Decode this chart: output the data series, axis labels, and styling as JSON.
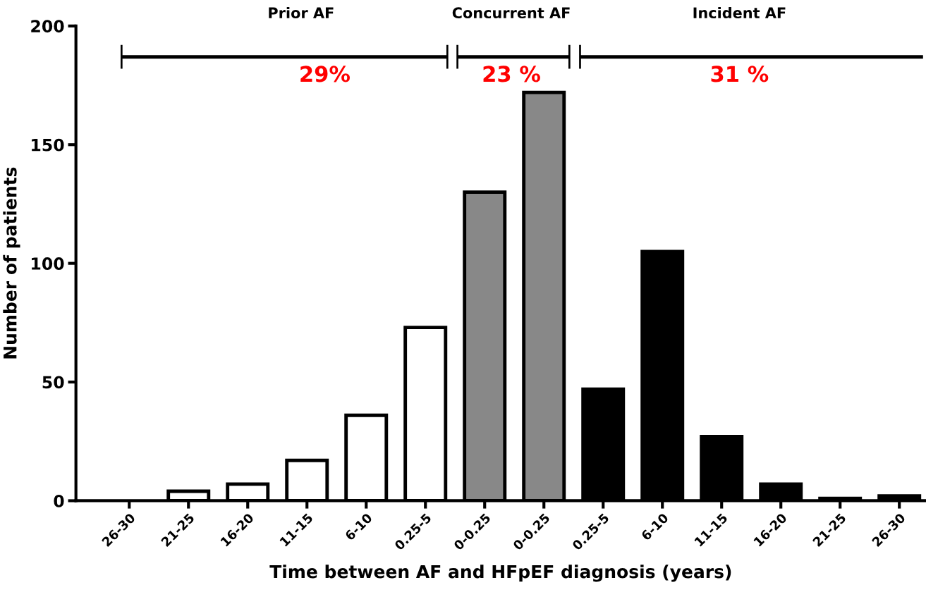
{
  "chart_data": {
    "type": "bar",
    "xlabel": "Time between AF and HFpEF diagnosis (years)",
    "ylabel": "Number of patients",
    "categories": [
      "26-30",
      "21-25",
      "16-20",
      "11-15",
      "6-10",
      "0.25-5",
      "0-0.25",
      "0-0.25",
      "0.25-5",
      "6-10",
      "11-15",
      "16-20",
      "21-25",
      "26-30"
    ],
    "values": [
      0,
      4,
      7,
      17,
      36,
      73,
      130,
      172,
      47,
      105,
      27,
      7,
      1,
      2
    ],
    "colors": [
      "#ffffff",
      "#ffffff",
      "#ffffff",
      "#ffffff",
      "#ffffff",
      "#ffffff",
      "#888888",
      "#888888",
      "#000000",
      "#000000",
      "#000000",
      "#000000",
      "#000000",
      "#000000"
    ],
    "ylim": [
      0,
      200
    ],
    "yticks": [
      0,
      50,
      100,
      150,
      200
    ],
    "grid": false,
    "legend": false,
    "annotations": [
      "Prior AF",
      "Concurrent AF",
      "Incident AF",
      "29%",
      "23 %",
      "31 %"
    ]
  }
}
